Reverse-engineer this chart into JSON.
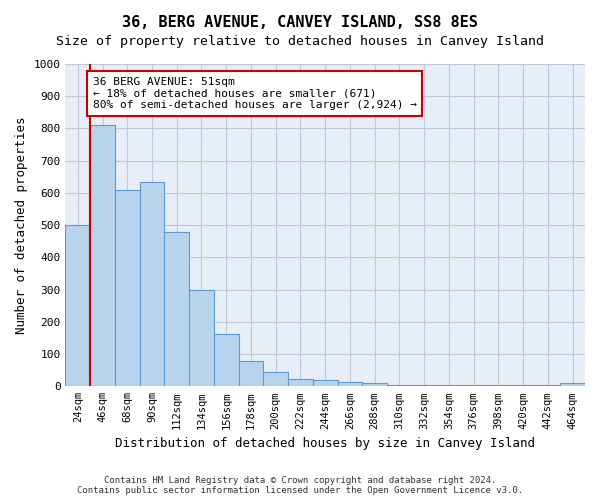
{
  "title": "36, BERG AVENUE, CANVEY ISLAND, SS8 8ES",
  "subtitle": "Size of property relative to detached houses in Canvey Island",
  "xlabel": "Distribution of detached houses by size in Canvey Island",
  "ylabel": "Number of detached properties",
  "bar_values": [
    500,
    810,
    610,
    635,
    480,
    300,
    162,
    78,
    45,
    22,
    20,
    14,
    10,
    4,
    4,
    4,
    4,
    4,
    4,
    4,
    10
  ],
  "bar_labels": [
    "24sqm",
    "46sqm",
    "68sqm",
    "90sqm",
    "112sqm",
    "134sqm",
    "156sqm",
    "178sqm",
    "200sqm",
    "222sqm",
    "244sqm",
    "266sqm",
    "288sqm",
    "310sqm",
    "332sqm",
    "354sqm",
    "376sqm",
    "398sqm",
    "420sqm",
    "442sqm",
    "464sqm"
  ],
  "bar_color": "#b8d4ed",
  "bar_edge_color": "#5b9bd5",
  "annotation_text": "36 BERG AVENUE: 51sqm\n← 18% of detached houses are smaller (671)\n80% of semi-detached houses are larger (2,924) →",
  "annotation_box_facecolor": "#ffffff",
  "annotation_box_edgecolor": "#cc0000",
  "vline_x": 0.5,
  "vline_color": "#cc0000",
  "ylim": [
    0,
    1000
  ],
  "yticks": [
    0,
    100,
    200,
    300,
    400,
    500,
    600,
    700,
    800,
    900,
    1000
  ],
  "grid_color": "#c0c8d8",
  "bg_color": "#e8eef8",
  "footnote": "Contains HM Land Registry data © Crown copyright and database right 2024.\nContains public sector information licensed under the Open Government Licence v3.0.",
  "title_fontsize": 11,
  "subtitle_fontsize": 9.5,
  "xlabel_fontsize": 9,
  "ylabel_fontsize": 9,
  "annotation_fontsize": 8
}
